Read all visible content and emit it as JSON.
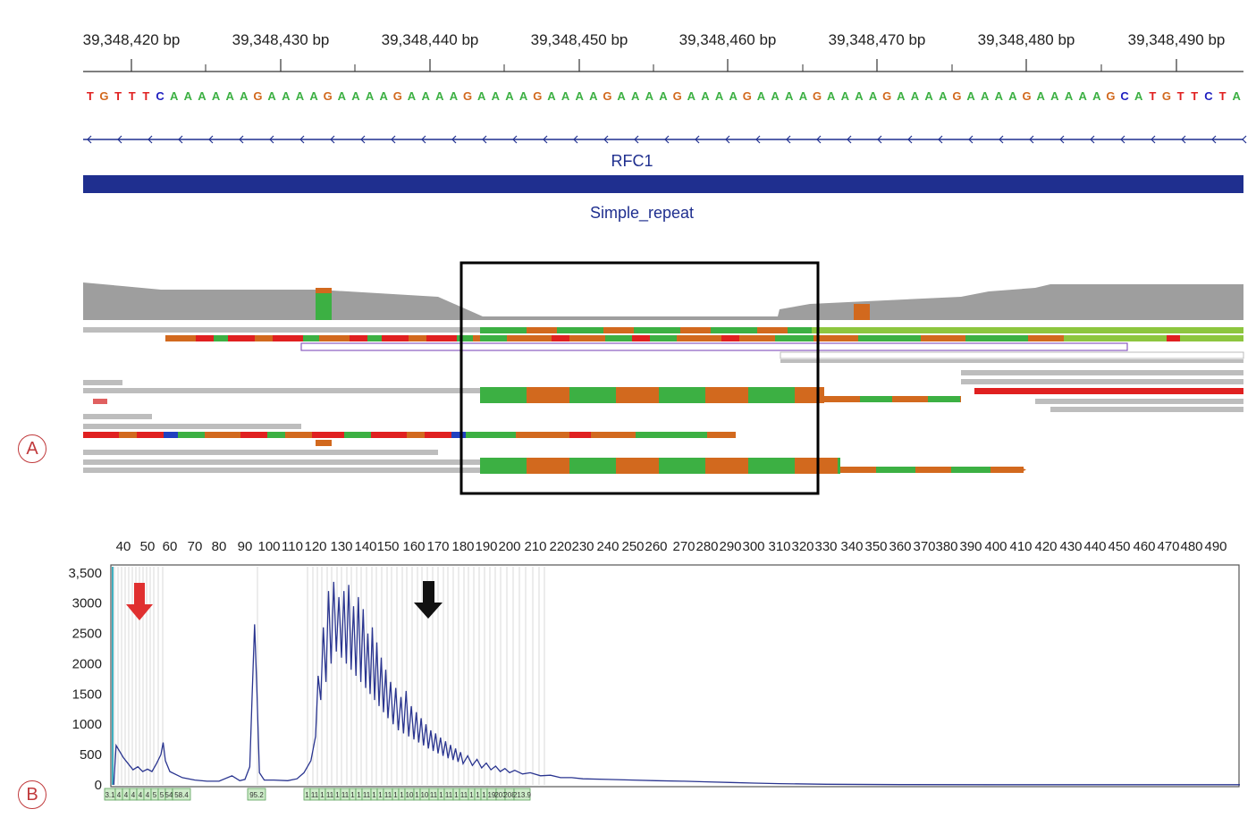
{
  "panel_labels": {
    "a": "A",
    "b": "B"
  },
  "genome": {
    "ruler_ticks": [
      "39,348,420 bp",
      "39,348,430 bp",
      "39,348,440 bp",
      "39,348,450 bp",
      "39,348,460 bp",
      "39,348,470 bp",
      "39,348,480 bp",
      "39,348,490 bp"
    ],
    "sequence": "TGTTTCAAAAAAGAAAAGAAAAGAAAAGAAAAGAAAAGAAAAGAAAAGAAAAGAAAAGAAAAGAAAAGAAAAAGCATGTTCTA",
    "base_colors": {
      "A": "#3cb043",
      "G": "#d2691e",
      "T": "#e02020",
      "C": "#2020c0"
    },
    "gene_label": "RFC1",
    "repeat_label": "Simple_repeat",
    "track_color": "#1f2f8f",
    "read_colors": {
      "gray": "#bdbdbd",
      "green": "#3cb043",
      "orange": "#d2691e",
      "red": "#e02020",
      "lime": "#8dc63f",
      "blue": "#2040c0"
    }
  },
  "chart_data": {
    "type": "line",
    "x_ticks": [
      40,
      50,
      60,
      70,
      80,
      90,
      100,
      110,
      120,
      130,
      140,
      150,
      160,
      170,
      180,
      190,
      200,
      210,
      220,
      230,
      240,
      250,
      260,
      270,
      280,
      290,
      300,
      310,
      320,
      330,
      340,
      350,
      360,
      370,
      380,
      390,
      400,
      410,
      420,
      430,
      440,
      450,
      460,
      470,
      480,
      490
    ],
    "y_ticks": [
      "3,500",
      "3000",
      "2500",
      "2000",
      "1500",
      "1000",
      "500",
      "0"
    ],
    "ylim": [
      0,
      3600
    ],
    "xlim": [
      36,
      500
    ],
    "series": [
      {
        "values": [
          [
            36,
            0
          ],
          [
            37,
            650
          ],
          [
            40,
            450
          ],
          [
            42,
            350
          ],
          [
            44,
            250
          ],
          [
            46,
            300
          ],
          [
            48,
            220
          ],
          [
            50,
            260
          ],
          [
            52,
            220
          ],
          [
            54,
            350
          ],
          [
            56,
            500
          ],
          [
            57,
            700
          ],
          [
            58,
            400
          ],
          [
            60,
            220
          ],
          [
            65,
            120
          ],
          [
            70,
            80
          ],
          [
            75,
            60
          ],
          [
            80,
            60
          ],
          [
            85,
            150
          ],
          [
            88,
            70
          ],
          [
            90,
            90
          ],
          [
            92,
            300
          ],
          [
            93,
            1500
          ],
          [
            94,
            2650
          ],
          [
            95,
            1500
          ],
          [
            96,
            200
          ],
          [
            98,
            80
          ],
          [
            102,
            80
          ],
          [
            108,
            70
          ],
          [
            112,
            100
          ],
          [
            115,
            200
          ],
          [
            118,
            400
          ],
          [
            120,
            800
          ],
          [
            121,
            1800
          ],
          [
            122,
            1400
          ],
          [
            123,
            2600
          ],
          [
            124,
            1700
          ],
          [
            125,
            3200
          ],
          [
            126,
            2000
          ],
          [
            127,
            3350
          ],
          [
            128,
            2200
          ],
          [
            129,
            3100
          ],
          [
            130,
            2100
          ],
          [
            131,
            3200
          ],
          [
            132,
            2000
          ],
          [
            133,
            3300
          ],
          [
            134,
            1900
          ],
          [
            135,
            2950
          ],
          [
            136,
            1800
          ],
          [
            137,
            3100
          ],
          [
            138,
            1700
          ],
          [
            139,
            2900
          ],
          [
            140,
            1600
          ],
          [
            141,
            2500
          ],
          [
            142,
            1500
          ],
          [
            143,
            2600
          ],
          [
            144,
            1400
          ],
          [
            145,
            2350
          ],
          [
            146,
            1300
          ],
          [
            147,
            2100
          ],
          [
            148,
            1200
          ],
          [
            149,
            1900
          ],
          [
            150,
            1100
          ],
          [
            151,
            1700
          ],
          [
            152,
            1000
          ],
          [
            153,
            1600
          ],
          [
            154,
            900
          ],
          [
            155,
            1450
          ],
          [
            156,
            850
          ],
          [
            157,
            1550
          ],
          [
            158,
            800
          ],
          [
            159,
            1300
          ],
          [
            160,
            750
          ],
          [
            161,
            1200
          ],
          [
            162,
            700
          ],
          [
            163,
            1100
          ],
          [
            164,
            650
          ],
          [
            165,
            1000
          ],
          [
            166,
            600
          ],
          [
            167,
            900
          ],
          [
            168,
            560
          ],
          [
            169,
            850
          ],
          [
            170,
            520
          ],
          [
            171,
            780
          ],
          [
            172,
            480
          ],
          [
            173,
            720
          ],
          [
            174,
            440
          ],
          [
            175,
            660
          ],
          [
            176,
            410
          ],
          [
            177,
            600
          ],
          [
            178,
            380
          ],
          [
            179,
            540
          ],
          [
            180,
            350
          ],
          [
            182,
            480
          ],
          [
            184,
            320
          ],
          [
            186,
            420
          ],
          [
            188,
            280
          ],
          [
            190,
            360
          ],
          [
            192,
            250
          ],
          [
            194,
            310
          ],
          [
            196,
            220
          ],
          [
            198,
            270
          ],
          [
            200,
            200
          ],
          [
            202,
            240
          ],
          [
            205,
            180
          ],
          [
            208,
            200
          ],
          [
            212,
            150
          ],
          [
            216,
            160
          ],
          [
            220,
            120
          ],
          [
            225,
            120
          ],
          [
            230,
            100
          ],
          [
            240,
            90
          ],
          [
            250,
            80
          ],
          [
            260,
            70
          ],
          [
            270,
            60
          ],
          [
            280,
            50
          ],
          [
            290,
            40
          ],
          [
            300,
            30
          ],
          [
            310,
            20
          ],
          [
            330,
            10
          ],
          [
            360,
            5
          ],
          [
            400,
            3
          ],
          [
            500,
            3
          ]
        ]
      }
    ],
    "peak_labels": [
      "3.1",
      "4",
      "4",
      "4",
      "4",
      "4",
      "5",
      "5",
      "54",
      "58.4",
      "95.2",
      "1",
      "11",
      "1",
      "11",
      "1",
      "11",
      "1",
      "1",
      "11",
      "1",
      "1",
      "11",
      "1",
      "1",
      "10",
      "1",
      "10",
      "11",
      "1",
      "11",
      "1",
      "11",
      "1",
      "1",
      "1",
      "19",
      "203",
      "208",
      "213.9"
    ]
  },
  "arrows": {
    "red": "#e03030",
    "black": "#111111"
  }
}
